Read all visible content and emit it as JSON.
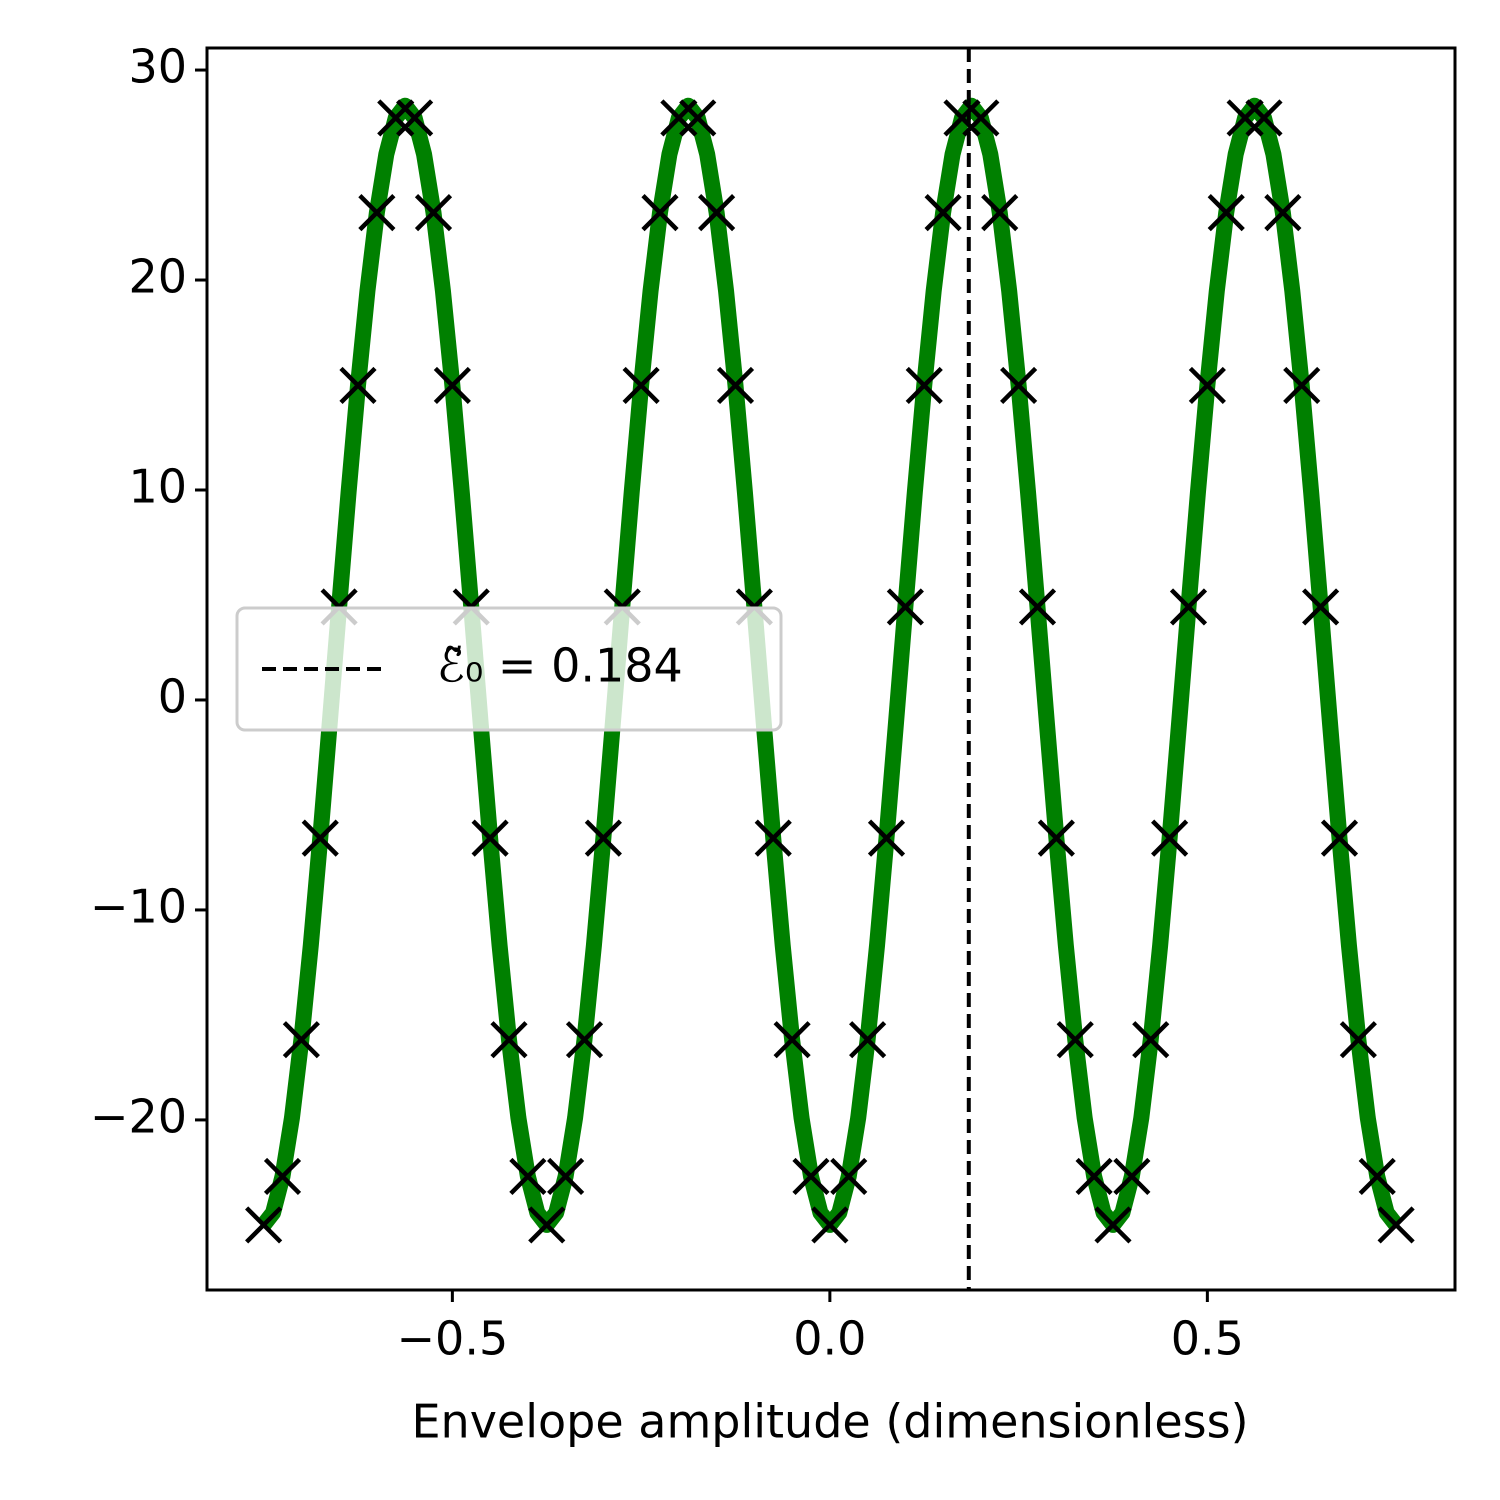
{
  "chart_data": {
    "type": "line",
    "xlabel": "Envelope amplitude (dimensionless)",
    "xlim": [
      -0.825,
      0.828
    ],
    "ylim": [
      -28.1,
      31.05
    ],
    "xticks": [
      {
        "value": -0.5,
        "label": "−0.5"
      },
      {
        "value": 0,
        "label": "0.0"
      },
      {
        "value": 0.5,
        "label": "0.5"
      }
    ],
    "yticks": [
      {
        "value": -20,
        "label": "−20"
      },
      {
        "value": -10,
        "label": "−10"
      },
      0,
      10,
      20,
      30
    ],
    "legend_loc": "center left",
    "series": [
      {
        "type": "line",
        "color": "#008000",
        "x": [
          -0.75,
          -0.7375,
          -0.725,
          -0.7125,
          -0.7,
          -0.6875,
          -0.675,
          -0.6625,
          -0.65,
          -0.6375,
          -0.625,
          -0.6125,
          -0.6,
          -0.5875,
          -0.575,
          -0.5625,
          -0.55,
          -0.5375,
          -0.525,
          -0.5125,
          -0.5,
          -0.4875,
          -0.475,
          -0.4625,
          -0.45,
          -0.4375,
          -0.425,
          -0.4125,
          -0.4,
          -0.3875,
          -0.375,
          -0.3625,
          -0.35,
          -0.3375,
          -0.325,
          -0.3125,
          -0.3,
          -0.2875,
          -0.275,
          -0.2625,
          -0.25,
          -0.2375,
          -0.225,
          -0.2125,
          -0.2,
          -0.1875,
          -0.175,
          -0.1625,
          -0.15,
          -0.1375,
          -0.125,
          -0.1125,
          -0.1,
          -0.0875,
          -0.075,
          -0.0625,
          -0.05,
          -0.0375,
          -0.025,
          -0.0125,
          0,
          0.0125,
          0.025,
          0.0375,
          0.05,
          0.0625,
          0.075,
          0.0875,
          0.1,
          0.1125,
          0.125,
          0.1375,
          0.15,
          0.1625,
          0.175,
          0.1875,
          0.2,
          0.2125,
          0.225,
          0.2375,
          0.25,
          0.2625,
          0.275,
          0.2875,
          0.3,
          0.3125,
          0.325,
          0.3375,
          0.35,
          0.3625,
          0.375,
          0.3875,
          0.4,
          0.4125,
          0.425,
          0.4375,
          0.45,
          0.4625,
          0.475,
          0.4875,
          0.5,
          0.5125,
          0.525,
          0.5375,
          0.55,
          0.5625,
          0.575,
          0.5875,
          0.6,
          0.6125,
          0.625,
          0.6375,
          0.65,
          0.6625,
          0.675,
          0.6875,
          0.7,
          0.7125,
          0.725,
          0.7375,
          0.75
        ],
        "values": [
          -25,
          -24.42,
          -22.69,
          -19.91,
          -16.18,
          -11.68,
          -6.58,
          -1.13,
          4.43,
          9.88,
          14.98,
          19.48,
          23.21,
          25.99,
          27.72,
          28.3,
          27.72,
          25.99,
          23.21,
          19.48,
          14.98,
          9.88,
          4.43,
          -1.13,
          -6.58,
          -11.68,
          -16.18,
          -19.91,
          -22.69,
          -24.42,
          -25,
          -24.42,
          -22.69,
          -19.91,
          -16.18,
          -11.68,
          -6.58,
          -1.13,
          4.43,
          9.88,
          14.98,
          19.48,
          23.21,
          25.99,
          27.72,
          28.3,
          27.72,
          25.99,
          23.21,
          19.48,
          14.98,
          9.88,
          4.43,
          -1.13,
          -6.58,
          -11.68,
          -16.18,
          -19.91,
          -22.69,
          -24.42,
          -25,
          -24.42,
          -22.69,
          -19.91,
          -16.18,
          -11.68,
          -6.58,
          -1.13,
          4.43,
          9.88,
          14.98,
          19.48,
          23.21,
          25.99,
          27.72,
          28.3,
          27.72,
          25.99,
          23.21,
          19.48,
          14.98,
          9.88,
          4.43,
          -1.13,
          -6.58,
          -11.68,
          -16.18,
          -19.91,
          -22.69,
          -24.42,
          -25,
          -24.42,
          -22.69,
          -19.91,
          -16.18,
          -11.68,
          -6.58,
          -1.13,
          4.43,
          9.88,
          14.98,
          19.48,
          23.21,
          25.99,
          27.72,
          28.3,
          27.72,
          25.99,
          23.21,
          19.48,
          14.98,
          9.88,
          4.43,
          -1.13,
          -6.58,
          -11.68,
          -16.18,
          -19.91,
          -22.69,
          -24.42,
          -25
        ]
      },
      {
        "type": "scatter",
        "marker": "x",
        "color": "#000000",
        "x": [
          -0.75,
          -0.725,
          -0.7,
          -0.675,
          -0.65,
          -0.625,
          -0.6,
          -0.575,
          -0.55,
          -0.525,
          -0.5,
          -0.475,
          -0.45,
          -0.425,
          -0.4,
          -0.375,
          -0.35,
          -0.325,
          -0.3,
          -0.275,
          -0.25,
          -0.225,
          -0.2,
          -0.175,
          -0.15,
          -0.125,
          -0.1,
          -0.075,
          -0.05,
          -0.025,
          0,
          0.025,
          0.05,
          0.075,
          0.1,
          0.125,
          0.15,
          0.175,
          0.2,
          0.225,
          0.25,
          0.275,
          0.3,
          0.325,
          0.35,
          0.375,
          0.4,
          0.425,
          0.45,
          0.475,
          0.5,
          0.525,
          0.55,
          0.575,
          0.6,
          0.625,
          0.65,
          0.675,
          0.7,
          0.725,
          0.75
        ],
        "values": [
          -25,
          -22.69,
          -16.18,
          -6.58,
          4.43,
          14.98,
          23.21,
          27.72,
          27.72,
          23.21,
          14.98,
          4.43,
          -6.58,
          -16.18,
          -22.69,
          -25,
          -22.69,
          -16.18,
          -6.58,
          4.43,
          14.98,
          23.21,
          27.72,
          27.72,
          23.21,
          14.98,
          4.43,
          -6.58,
          -16.18,
          -22.69,
          -25,
          -22.69,
          -16.18,
          -6.58,
          4.43,
          14.98,
          23.21,
          27.72,
          27.72,
          23.21,
          14.98,
          4.43,
          -6.58,
          -16.18,
          -22.69,
          -25,
          -22.69,
          -16.18,
          -6.58,
          4.43,
          14.98,
          23.21,
          27.72,
          27.72,
          23.21,
          14.98,
          4.43,
          -6.58,
          -16.18,
          -22.69,
          -25
        ]
      }
    ],
    "vlines": [
      {
        "x": 0.184,
        "label": "ℰ̃₀ = 0.184",
        "color": "#000000",
        "style": "dashed"
      }
    ]
  }
}
